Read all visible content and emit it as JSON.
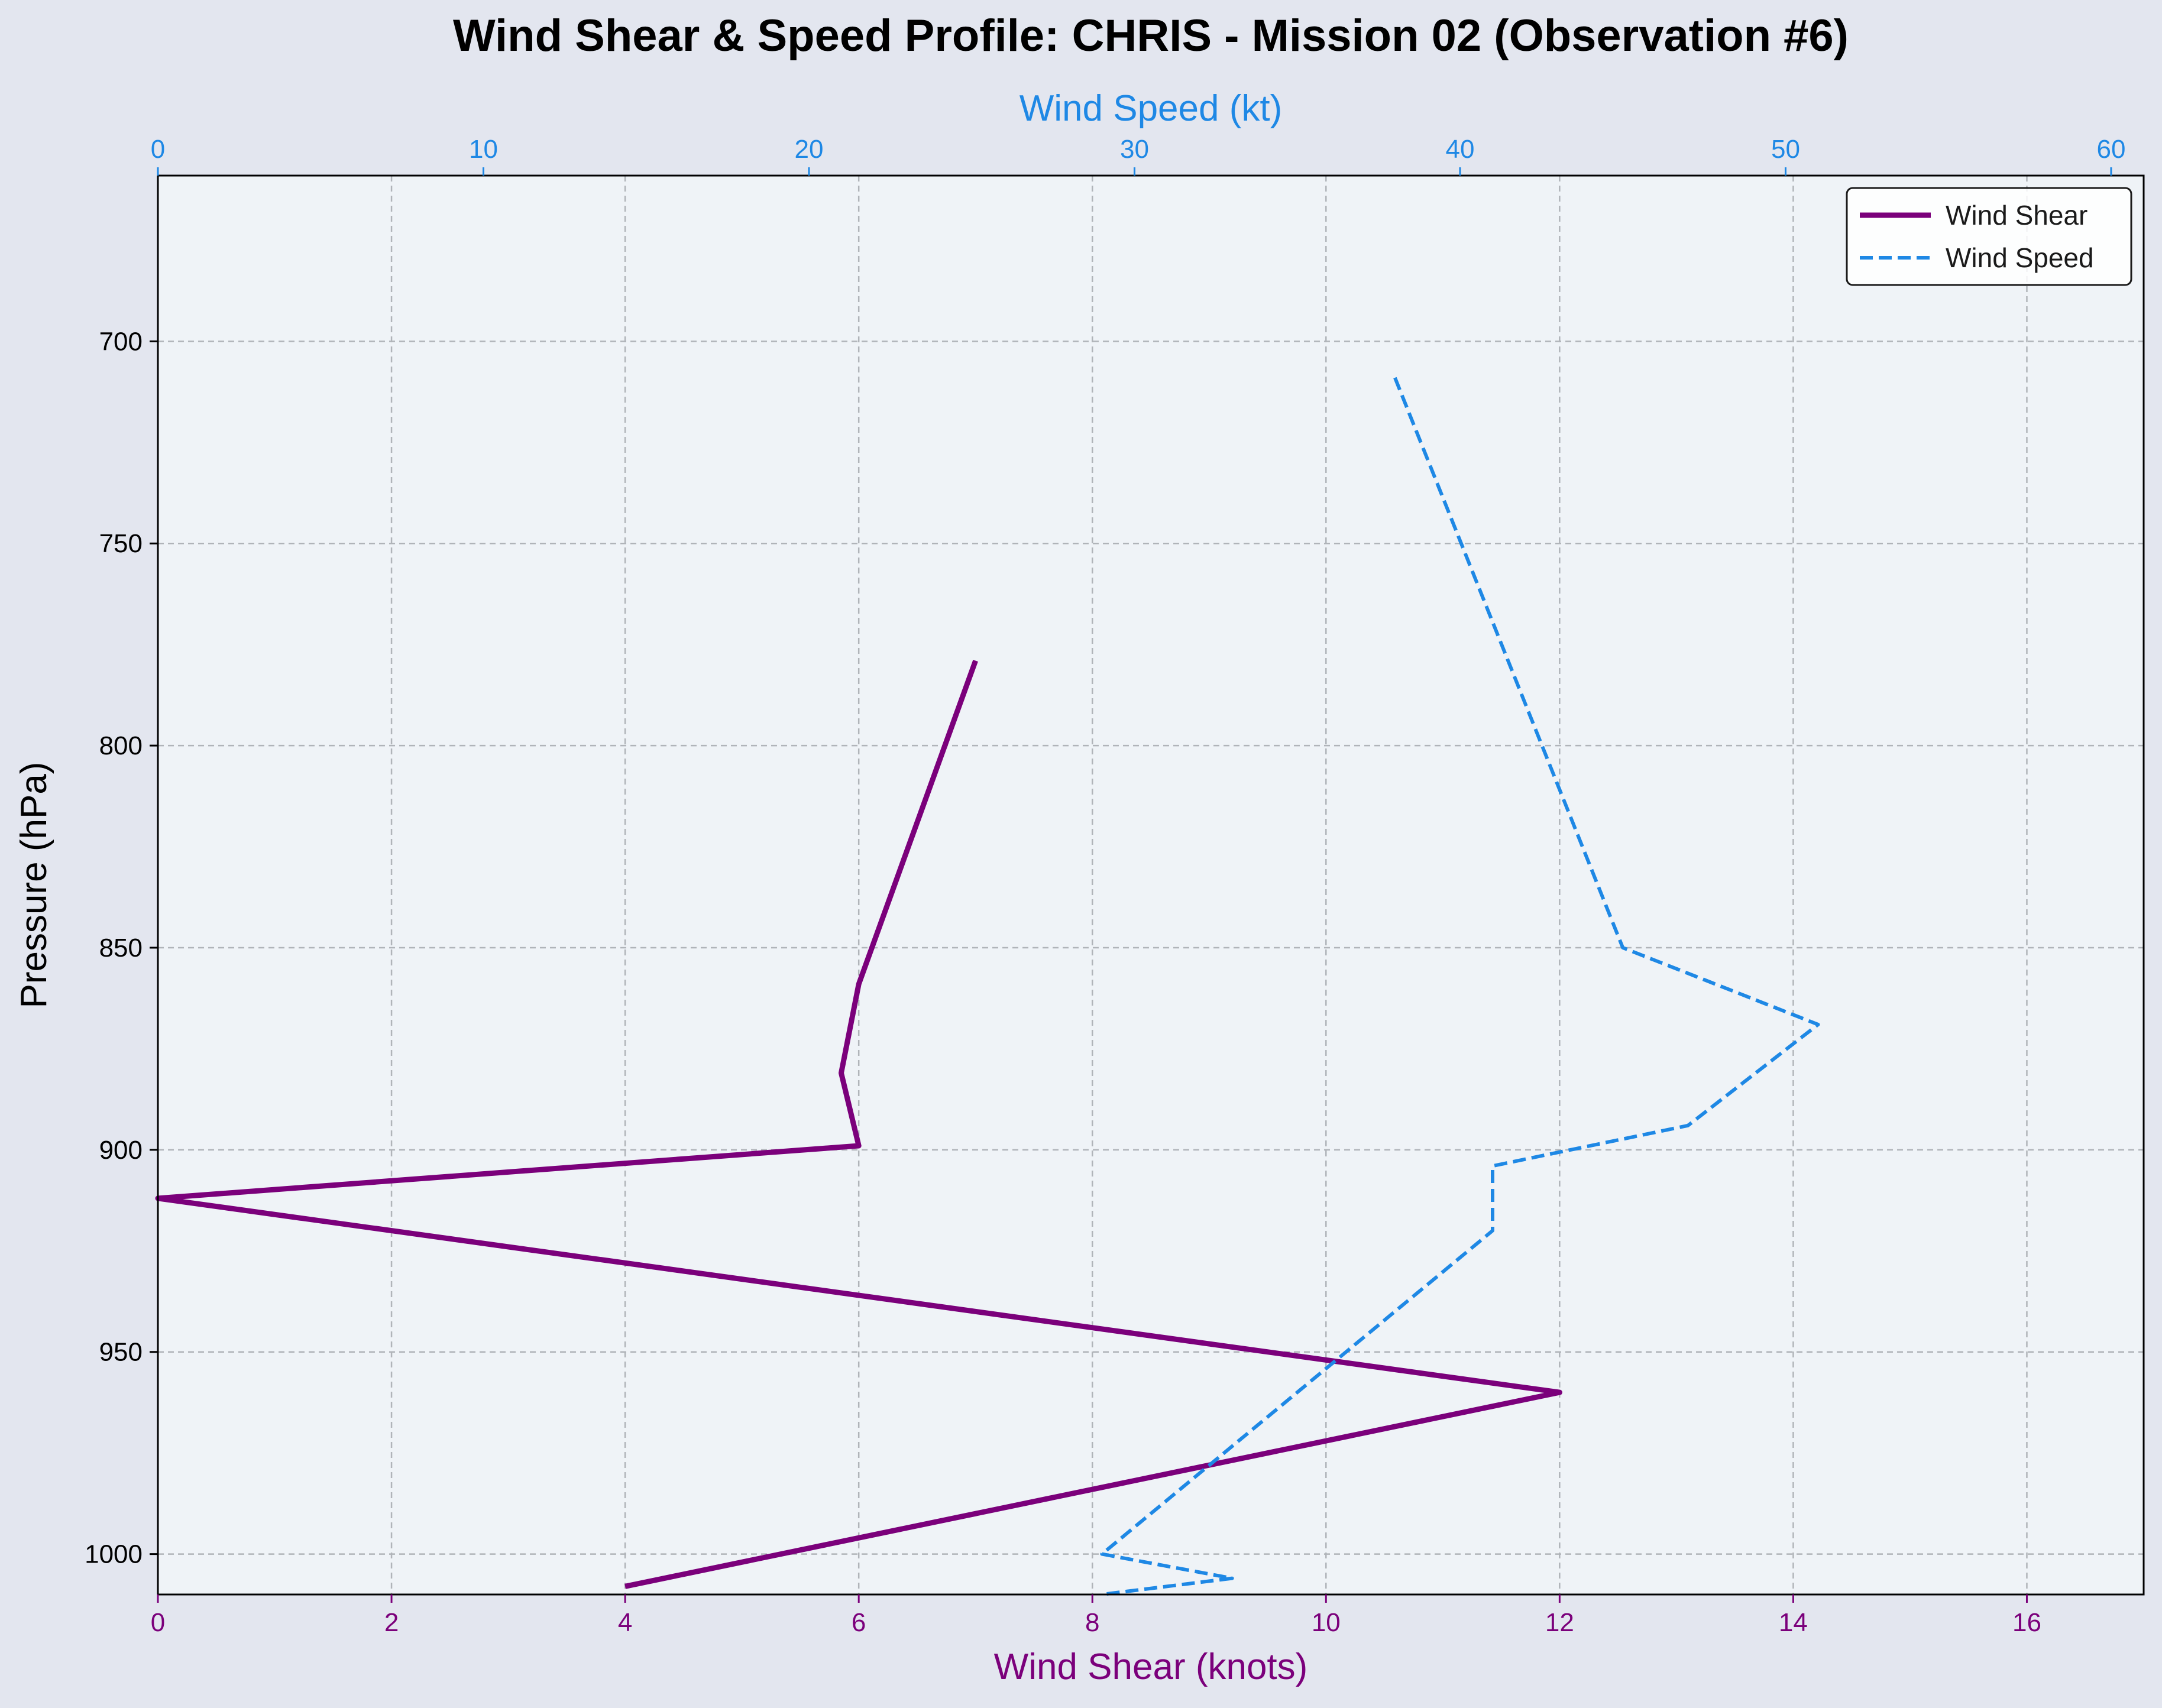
{
  "chart_data": {
    "type": "line",
    "title": "Wind Shear & Speed Profile: CHRIS - Mission 02 (Observation #6)",
    "ylabel": "Pressure (hPa)",
    "y_inverted": true,
    "ylim": [
      1010,
      659
    ],
    "yticks": [
      700,
      750,
      800,
      850,
      900,
      950,
      1000
    ],
    "grid": true,
    "legend_position": "top-right",
    "bottom_axis": {
      "label": "Wind Shear (knots)",
      "xlim": [
        0,
        17
      ],
      "ticks": [
        0,
        2,
        4,
        6,
        8,
        10,
        12,
        14,
        16
      ],
      "color": "#7b007b"
    },
    "top_axis": {
      "label": "Wind Speed (kt)",
      "xlim": [
        0,
        61
      ],
      "ticks": [
        0,
        10,
        20,
        30,
        40,
        50,
        60
      ],
      "color": "#1e88e5"
    },
    "series": [
      {
        "name": "Wind Shear",
        "axis": "bottom",
        "color": "#7b007b",
        "line_style": "solid",
        "points": [
          {
            "x": 7.0,
            "y": 779
          },
          {
            "x": 6.0,
            "y": 859
          },
          {
            "x": 5.85,
            "y": 881
          },
          {
            "x": 6.0,
            "y": 899
          },
          {
            "x": 0.0,
            "y": 912
          },
          {
            "x": 12.0,
            "y": 960
          },
          {
            "x": 4.0,
            "y": 1008
          }
        ]
      },
      {
        "name": "Wind Speed",
        "axis": "top",
        "color": "#1e88e5",
        "line_style": "dashed",
        "points": [
          {
            "x": 38.0,
            "y": 709
          },
          {
            "x": 45.0,
            "y": 850
          },
          {
            "x": 51.0,
            "y": 869
          },
          {
            "x": 47.0,
            "y": 894
          },
          {
            "x": 41.0,
            "y": 904
          },
          {
            "x": 41.0,
            "y": 920
          },
          {
            "x": 29.0,
            "y": 1000
          },
          {
            "x": 33.0,
            "y": 1006
          },
          {
            "x": 29.0,
            "y": 1010
          }
        ]
      }
    ]
  }
}
